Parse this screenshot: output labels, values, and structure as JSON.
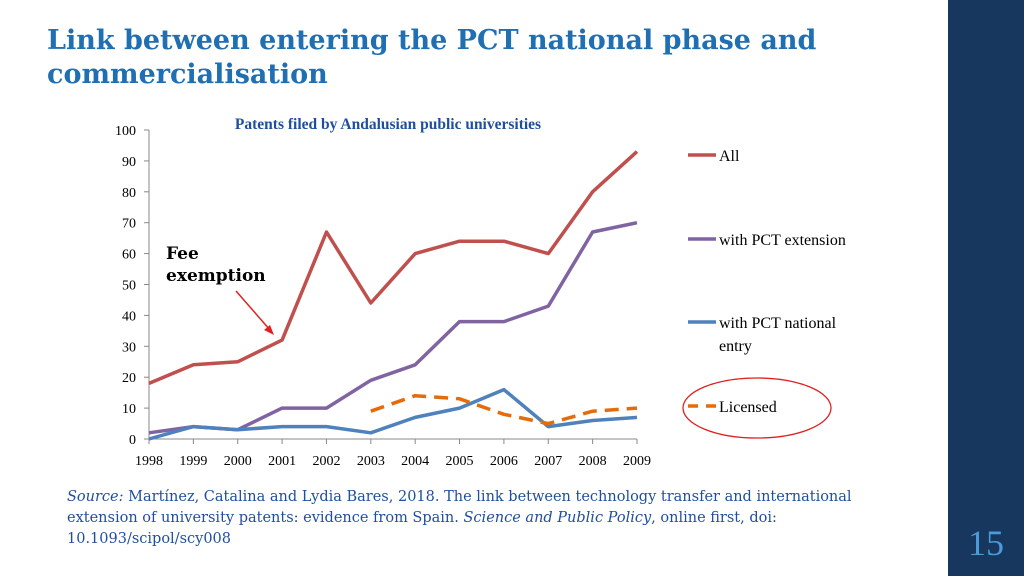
{
  "slide": {
    "title": "Link between entering the PCT national phase and commercialisation",
    "page_number": "15",
    "accent_color": "#1f6fb2",
    "sidebar_color": "#17375e"
  },
  "source": {
    "label": "Source:",
    "text_part1": " Martínez, Catalina and Lydia Bares, 2018. The link between technology transfer and international extension of university patents: evidence from Spain. ",
    "journal": "Science and Public Policy",
    "text_part2": ", online first, doi: 10.1093/scipol/scy008"
  },
  "chart_data": {
    "type": "line",
    "title": "Patents filed by Andalusian public universities",
    "xlabel": "",
    "ylabel": "",
    "ylim": [
      0,
      100
    ],
    "yticks": [
      0,
      10,
      20,
      30,
      40,
      50,
      60,
      70,
      80,
      90,
      100
    ],
    "categories": [
      "1998",
      "1999",
      "2000",
      "2001",
      "2002",
      "2003",
      "2004",
      "2005",
      "2006",
      "2007",
      "2008",
      "2009"
    ],
    "series": [
      {
        "name": "All",
        "color": "#c0504d",
        "dashed": false,
        "values": [
          18,
          24,
          25,
          32,
          67,
          44,
          60,
          64,
          64,
          60,
          80,
          93
        ]
      },
      {
        "name": "with PCT extension",
        "color": "#8064a2",
        "dashed": false,
        "values": [
          2,
          4,
          3,
          10,
          10,
          19,
          24,
          38,
          38,
          43,
          67,
          70
        ]
      },
      {
        "name": "with PCT national entry",
        "color": "#4f81bd",
        "dashed": false,
        "values": [
          0,
          4,
          3,
          4,
          4,
          2,
          7,
          10,
          16,
          4,
          6,
          7
        ]
      },
      {
        "name": "Licensed",
        "color": "#e46c0a",
        "dashed": true,
        "values": [
          null,
          null,
          null,
          null,
          null,
          9,
          14,
          13,
          8,
          5,
          9,
          10
        ]
      }
    ],
    "annotation": {
      "line1": "Fee",
      "line2": "exemption",
      "year": "2001"
    },
    "legend_position": "right"
  }
}
